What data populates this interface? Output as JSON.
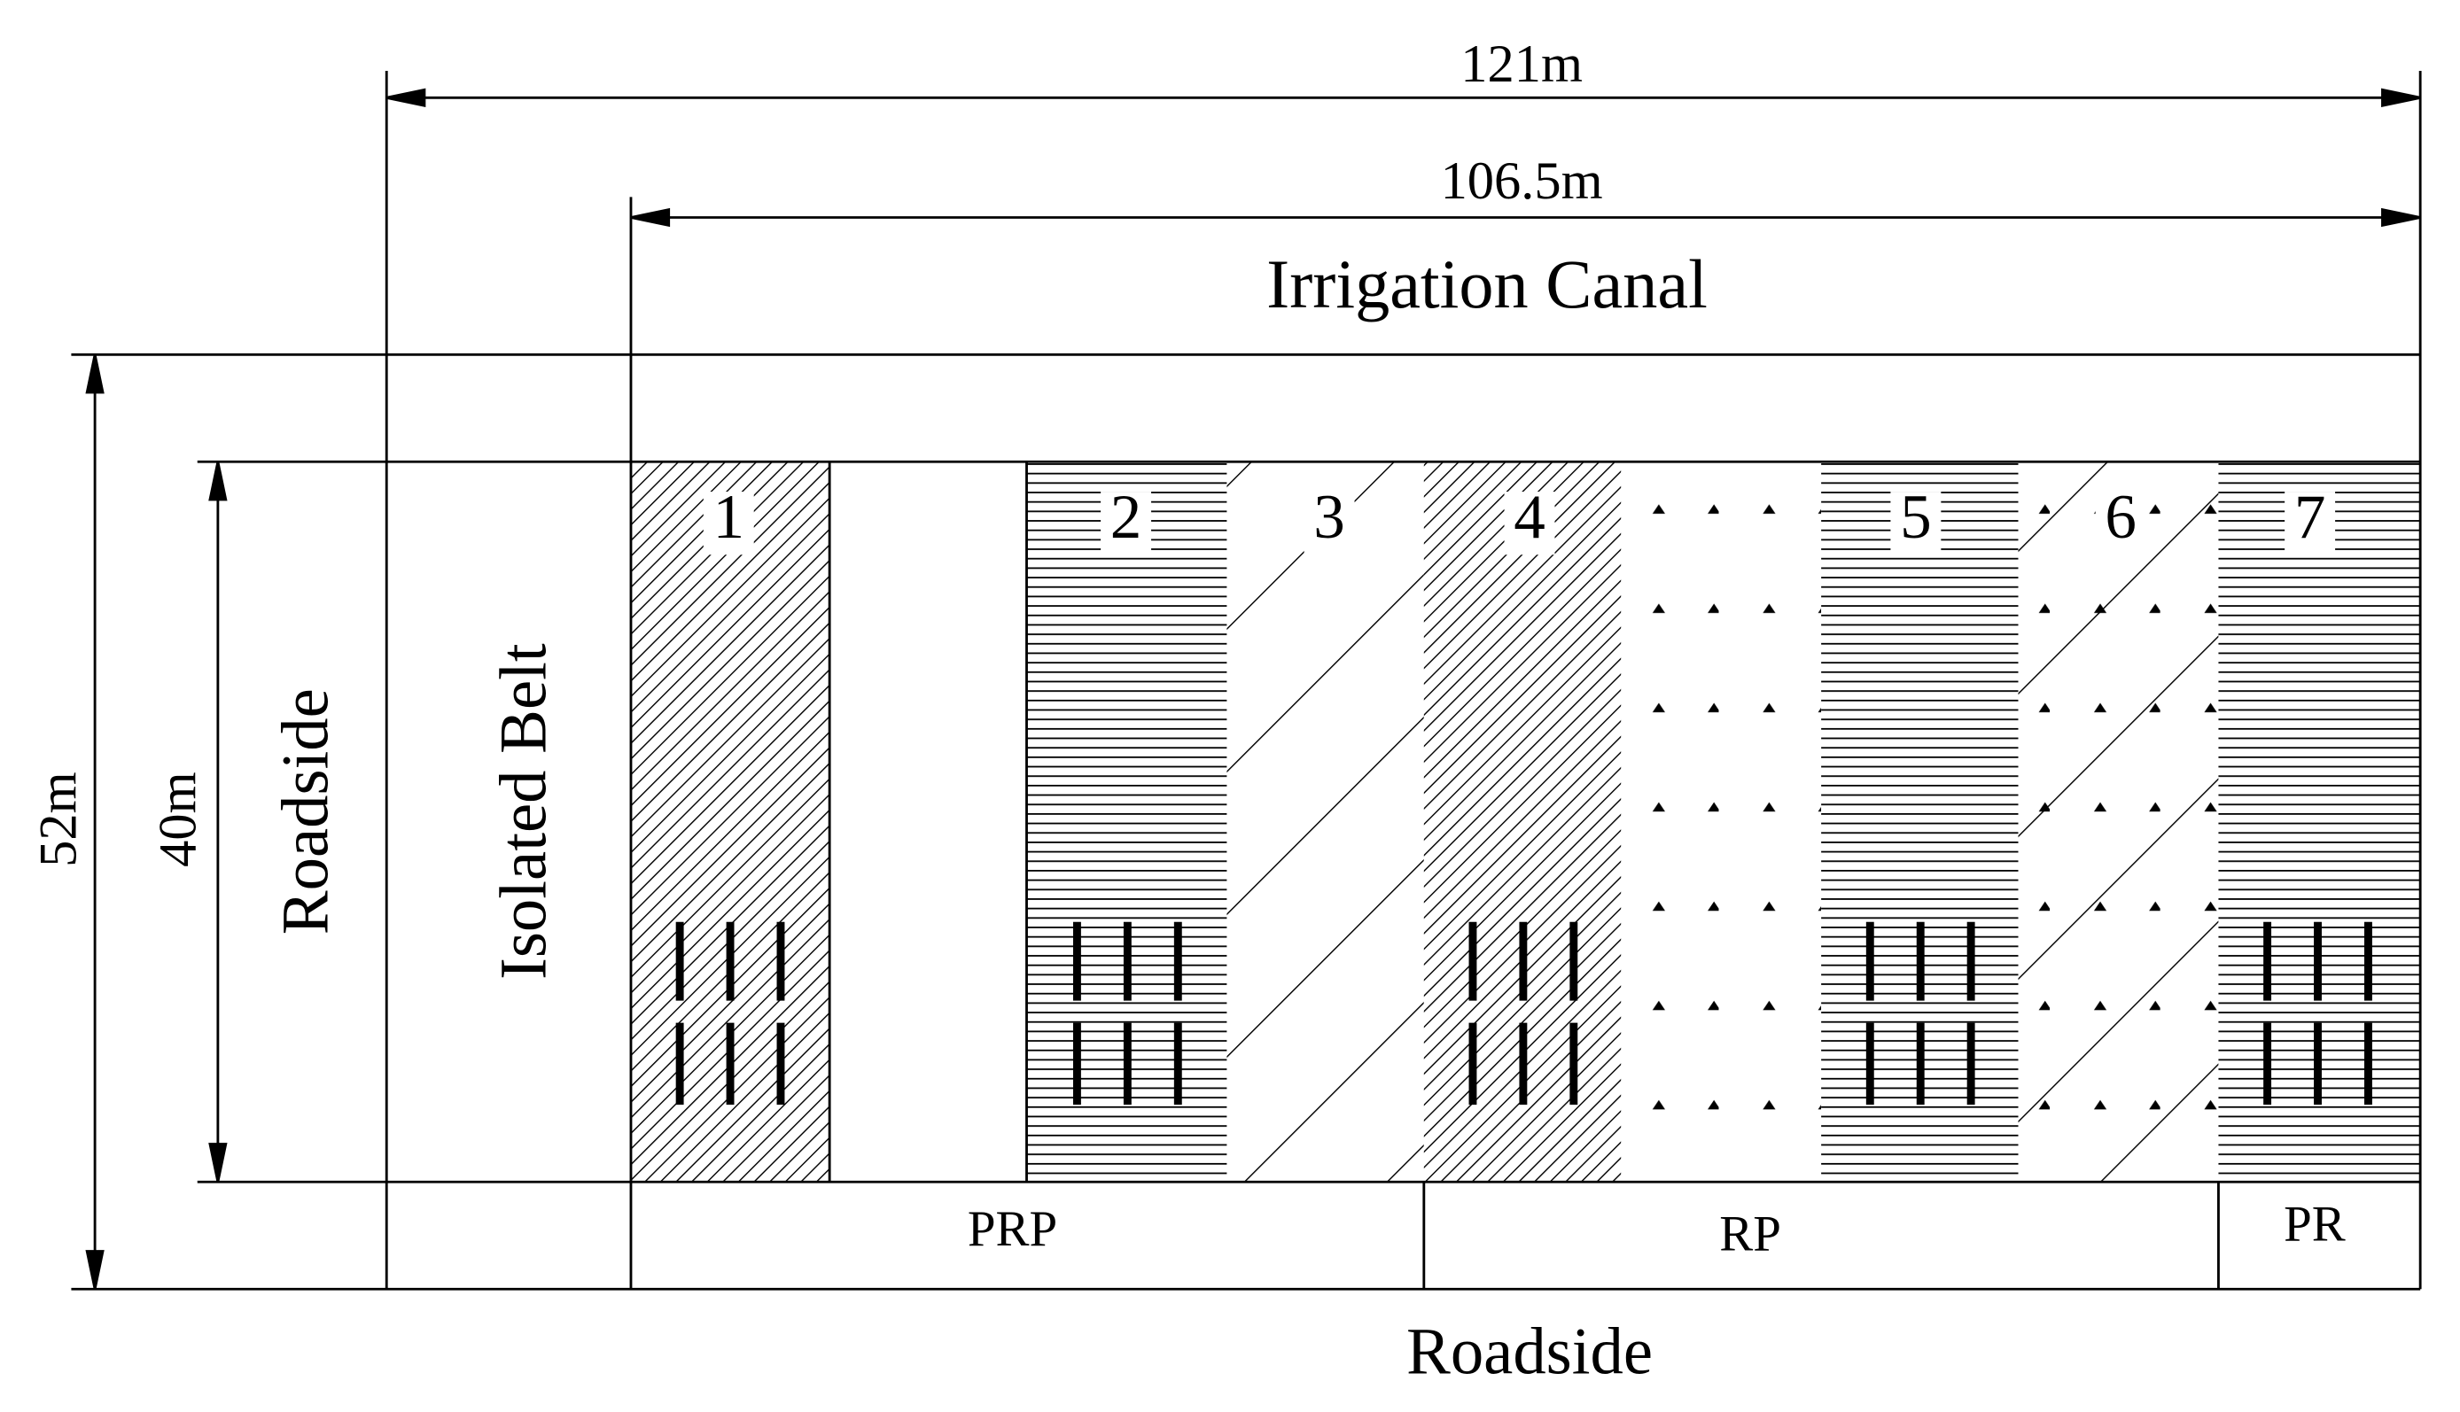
{
  "dimensions": {
    "total_width": "121m",
    "canal_width": "106.5m",
    "total_height": "52m",
    "plot_height": "40m"
  },
  "labels": {
    "top": "Irrigation Canal",
    "left": "Roadside",
    "belt": "Isolated Belt",
    "bottom": "Roadside"
  },
  "plots": [
    {
      "label": "1"
    },
    {
      "label": "2"
    },
    {
      "label": "3"
    },
    {
      "label": "4"
    },
    {
      "label": "5"
    },
    {
      "label": "6"
    },
    {
      "label": "7"
    }
  ],
  "groups": [
    {
      "label": "PRP"
    },
    {
      "label": "RP"
    },
    {
      "label": "PR"
    }
  ]
}
